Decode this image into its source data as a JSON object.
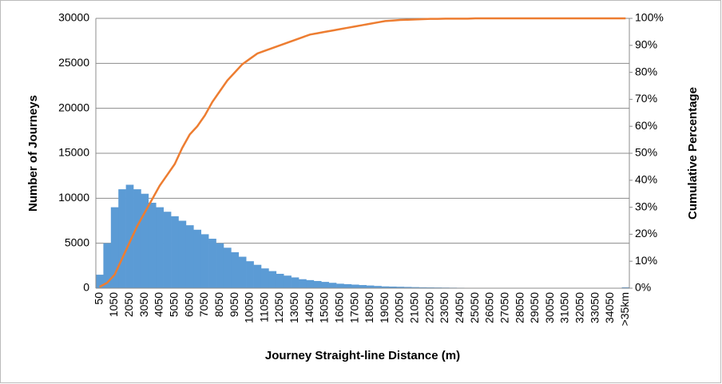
{
  "chart_data": {
    "type": "bar",
    "x_label": "Journey Straight-line Distance (m)",
    "y_label": "Number of Journeys",
    "y2_label": "Cumulative Percentage",
    "categories": [
      "50",
      null,
      "1050",
      null,
      "2050",
      null,
      "3050",
      null,
      "4050",
      null,
      "5050",
      null,
      "6050",
      null,
      "7050",
      null,
      "8050",
      null,
      "9050",
      null,
      "10050",
      null,
      "11050",
      null,
      "12050",
      null,
      "13050",
      null,
      "14050",
      null,
      "15050",
      null,
      "16050",
      null,
      "17050",
      null,
      "18050",
      null,
      "19050",
      null,
      "20050",
      null,
      "21050",
      null,
      "22050",
      null,
      "23050",
      null,
      "24050",
      null,
      "25050",
      null,
      "26050",
      null,
      "27050",
      null,
      "28050",
      null,
      "29050",
      null,
      "30050",
      null,
      "31050",
      null,
      "32050",
      null,
      "33050",
      null,
      "34050",
      null,
      ">35km"
    ],
    "series": [
      {
        "color": "#5b9bd5",
        "values": [
          1500,
          5000,
          9000,
          11000,
          11500,
          11000,
          10500,
          9500,
          9000,
          8500,
          8000,
          7500,
          7000,
          6500,
          6000,
          5500,
          5000,
          4500,
          4000,
          3500,
          3000,
          2600,
          2200,
          1900,
          1600,
          1400,
          1200,
          1000,
          900,
          800,
          700,
          600,
          500,
          450,
          400,
          350,
          300,
          250,
          200,
          180,
          160,
          140,
          120,
          100,
          90,
          80,
          70,
          60,
          50,
          40,
          40,
          35,
          30,
          30,
          25,
          25,
          20,
          20,
          20,
          15,
          15,
          15,
          10,
          10,
          10,
          10,
          10,
          10,
          10,
          10,
          100
        ]
      },
      {
        "type": "line",
        "axis": "y2",
        "color": "#ed7d31",
        "values": [
          0.5,
          2,
          5,
          11,
          17,
          23,
          28,
          33,
          38,
          42,
          46,
          52,
          57,
          60,
          64,
          69,
          73,
          77,
          80,
          83,
          85,
          87,
          88,
          89,
          90,
          91,
          92,
          93,
          94,
          94.5,
          95,
          95.5,
          96,
          96.5,
          97,
          97.5,
          98,
          98.5,
          99,
          99.2,
          99.4,
          99.5,
          99.6,
          99.7,
          99.8,
          99.8,
          99.9,
          99.9,
          99.9,
          99.9,
          100,
          100,
          100,
          100,
          100,
          100,
          100,
          100,
          100,
          100,
          100,
          100,
          100,
          100,
          100,
          100,
          100,
          100,
          100,
          100,
          100
        ]
      }
    ],
    "ylim": [
      0,
      30000
    ],
    "yticks": [
      0,
      5000,
      10000,
      15000,
      20000,
      25000,
      30000
    ],
    "y2lim": [
      0,
      100
    ],
    "y2ticks": [
      {
        "value": 0,
        "label": "0%"
      },
      {
        "value": 10,
        "label": "10%"
      },
      {
        "value": 20,
        "label": "20%"
      },
      {
        "value": 30,
        "label": "30%"
      },
      {
        "value": 40,
        "label": "40%"
      },
      {
        "value": 50,
        "label": "50%"
      },
      {
        "value": 60,
        "label": "60%"
      },
      {
        "value": 70,
        "label": "70%"
      },
      {
        "value": 80,
        "label": "80%"
      },
      {
        "value": 90,
        "label": "90%"
      },
      {
        "value": 100,
        "label": "100%"
      }
    ],
    "grid": true
  }
}
